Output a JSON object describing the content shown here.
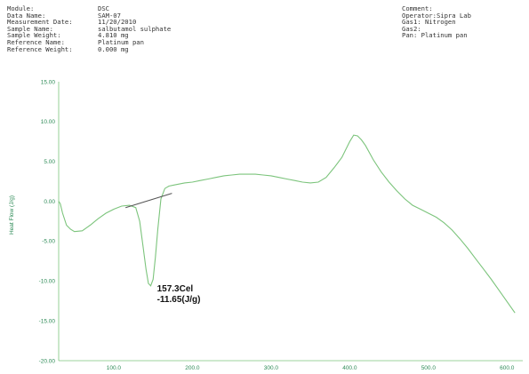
{
  "header": {
    "left": [
      {
        "label": "Module:",
        "value": "DSC"
      },
      {
        "label": "Data Name:",
        "value": "SAM-07"
      },
      {
        "label": "Measurement Date:",
        "value": "11/20/2010"
      },
      {
        "label": "Sample Name:",
        "value": "salbutamol sulphate"
      },
      {
        "label": "Sample Weight:",
        "value": "4.810 mg"
      },
      {
        "label": "Reference Name:",
        "value": "Platinum pan"
      },
      {
        "label": "Reference Weight:",
        "value": "0.000 mg"
      }
    ],
    "right": [
      "Comment:",
      "Operator:Sipra Lab",
      "Gas1: Nitrogen",
      "Gas2:",
      "Pan: Platinum pan"
    ]
  },
  "chart_data": {
    "type": "line",
    "title": "",
    "xlabel": "",
    "ylabel": "Heat Flow (J/g)",
    "xlim": [
      30,
      620
    ],
    "ylim": [
      -20,
      15
    ],
    "x_ticks": [
      100,
      200,
      300,
      400,
      500,
      600
    ],
    "x_tick_labels": [
      "100.0",
      "200.0",
      "300.0",
      "400.0",
      "500.0",
      "600.0"
    ],
    "y_ticks": [
      15,
      10,
      5,
      0,
      -5,
      -10,
      -15,
      -20
    ],
    "y_tick_labels": [
      "15.00",
      "10.00",
      "5.00",
      "0.00",
      "-5.00",
      "-10.00",
      "-15.00",
      "-20.00"
    ],
    "grid": false,
    "line_color": "#7cc47c",
    "baseline_color": "#555555",
    "series": [
      {
        "x": [
          30,
          32,
          35,
          40,
          45,
          50,
          60,
          70,
          80,
          90,
          100,
          110,
          120,
          128,
          133,
          137,
          141,
          144,
          147,
          150,
          153,
          156,
          160,
          165,
          170,
          175,
          180,
          190,
          200,
          210,
          220,
          230,
          240,
          250,
          260,
          270,
          280,
          290,
          300,
          310,
          320,
          330,
          340,
          350,
          360,
          370,
          380,
          390,
          400,
          405,
          410,
          415,
          420,
          430,
          440,
          450,
          460,
          470,
          480,
          490,
          500,
          510,
          520,
          530,
          540,
          550,
          560,
          570,
          580,
          590,
          600,
          610
        ],
        "y": [
          0.0,
          -0.3,
          -1.5,
          -3.0,
          -3.5,
          -3.8,
          -3.7,
          -3.0,
          -2.2,
          -1.5,
          -1.0,
          -0.6,
          -0.5,
          -0.8,
          -2.5,
          -5.5,
          -8.5,
          -10.3,
          -10.6,
          -9.8,
          -7.0,
          -3.5,
          0.3,
          1.6,
          1.9,
          2.0,
          2.1,
          2.3,
          2.4,
          2.6,
          2.8,
          3.0,
          3.2,
          3.3,
          3.4,
          3.4,
          3.4,
          3.3,
          3.2,
          3.0,
          2.8,
          2.6,
          2.4,
          2.3,
          2.4,
          3.0,
          4.2,
          5.5,
          7.5,
          8.3,
          8.2,
          7.7,
          7.0,
          5.2,
          3.7,
          2.4,
          1.3,
          0.3,
          -0.5,
          -1.0,
          -1.5,
          -2.0,
          -2.7,
          -3.6,
          -4.7,
          -5.9,
          -7.2,
          -8.5,
          -9.8,
          -11.2,
          -12.6,
          -14.0
        ]
      }
    ],
    "baseline": {
      "x": [
        115,
        174
      ],
      "y": [
        -0.8,
        1.0
      ]
    },
    "annotation": {
      "lines": [
        "157.3Cel",
        "-11.65(J/g)"
      ],
      "x": 155,
      "y": -11.3
    }
  }
}
